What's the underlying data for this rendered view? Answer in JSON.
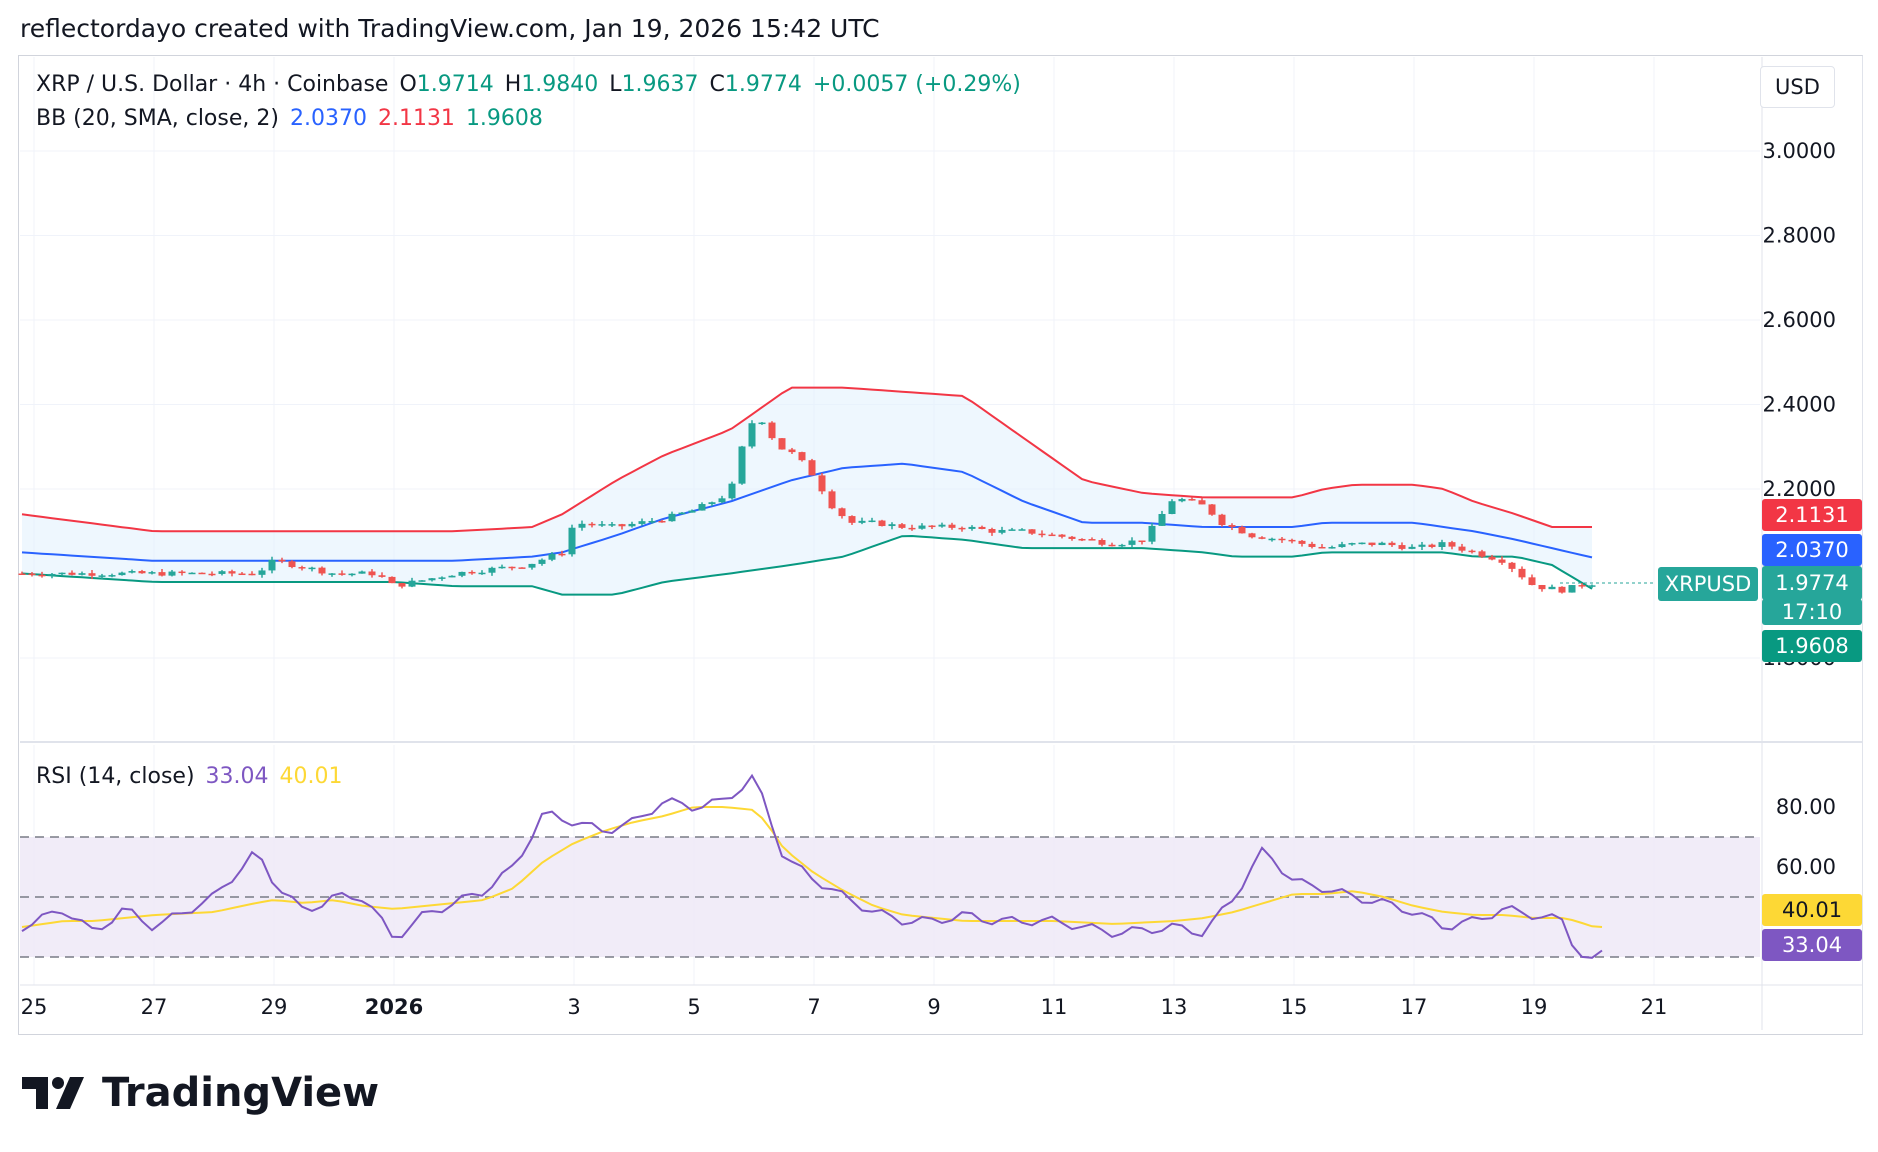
{
  "caption": "reflectordayo created with TradingView.com, Jan 19, 2026 15:42 UTC",
  "brand": "TradingView",
  "price_legend": {
    "symbol": "XRP / U.S. Dollar · 4h · Coinbase",
    "o_label": "O",
    "o": "1.9714",
    "h_label": "H",
    "h": "1.9840",
    "l_label": "L",
    "l": "1.9637",
    "c_label": "C",
    "c": "1.9774",
    "change": "+0.0057 (+0.29%)"
  },
  "bb_legend": {
    "label": "BB (20, SMA, close, 2)",
    "basis": "2.0370",
    "upper": "2.1131",
    "lower": "1.9608"
  },
  "rsi_legend": {
    "label": "RSI (14, close)",
    "rsi": "33.04",
    "ma": "40.01"
  },
  "currency": "USD",
  "badges": {
    "ticker": "XRPUSD",
    "upper": "2.1131",
    "basis": "2.0370",
    "last": "1.9774",
    "countdown": "17:10",
    "lower": "1.9608",
    "rsi_ma": "40.01",
    "rsi": "33.04"
  },
  "colors": {
    "up": "#26a69a",
    "down": "#ef5350",
    "bb_upper": "#f23645",
    "bb_basis": "#2962ff",
    "bb_lower": "#089981",
    "bb_fill": "#e3f2fd",
    "rsi": "#7e57c2",
    "rsi_ma": "#fdd835",
    "rsi_band": "#ede7f6",
    "badge_last": "#26a69a",
    "badge_lower": "#089981"
  },
  "chart_data": {
    "type": "candlestick",
    "interval": "4h",
    "y_ticks": [
      "3.0000",
      "2.8000",
      "2.6000",
      "2.4000",
      "2.2000",
      "1.8000"
    ],
    "y_tick_values": [
      3.0,
      2.8,
      2.6,
      2.4,
      2.2,
      1.8
    ],
    "x_ticks": [
      "25",
      "27",
      "29",
      "2026",
      "3",
      "5",
      "7",
      "9",
      "11",
      "13",
      "15",
      "17",
      "19",
      "21"
    ],
    "x_tick_days": [
      -7,
      -5,
      -3,
      -1,
      2,
      4,
      6,
      8,
      10,
      12,
      14,
      16,
      18,
      20
    ],
    "price_keyframes_day": [
      -7.2,
      -5,
      -3.3,
      -3,
      -2,
      -1.3,
      -1,
      0,
      1.2,
      1.8,
      2.0,
      2.7,
      3.5,
      4,
      4.6,
      4.9,
      5.1,
      5.4,
      5.7,
      6,
      6.3,
      6.6,
      7.0,
      7.5,
      8.0,
      8.5,
      9.0,
      9.5,
      10,
      10.5,
      11,
      11.5,
      12,
      12.5,
      12.8,
      13.3,
      13.8,
      14.5,
      15,
      15.5,
      16,
      16.5,
      17,
      17.5,
      18,
      18.5,
      18.7,
      19.0
    ],
    "price_keyframes": [
      2.0,
      2.0,
      2.0,
      2.03,
      2.0,
      2.0,
      1.97,
      2.0,
      2.02,
      2.05,
      2.12,
      2.11,
      2.13,
      2.15,
      2.19,
      2.35,
      2.37,
      2.3,
      2.28,
      2.23,
      2.16,
      2.12,
      2.12,
      2.11,
      2.11,
      2.11,
      2.1,
      2.1,
      2.09,
      2.08,
      2.07,
      2.08,
      2.18,
      2.16,
      2.12,
      2.09,
      2.08,
      2.06,
      2.07,
      2.07,
      2.06,
      2.07,
      2.05,
      2.03,
      1.97,
      1.96,
      1.97,
      1.9774
    ],
    "bb_upper_keyframes": [
      2.14,
      2.1,
      2.1,
      2.1,
      2.1,
      2.11,
      2.14,
      2.22,
      2.28,
      2.34,
      2.44,
      2.44,
      2.43,
      2.42,
      2.32,
      2.22,
      2.19,
      2.18,
      2.18,
      2.18,
      2.18,
      2.2,
      2.21,
      2.21,
      2.2,
      2.17,
      2.14,
      2.11,
      2.11
    ],
    "bb_keyframe_days": [
      -7.2,
      -5,
      -3,
      -1,
      0,
      1.3,
      1.8,
      2.7,
      3.5,
      4.6,
      5.6,
      6.5,
      7.5,
      8.5,
      9.5,
      10.5,
      11.5,
      12.5,
      13.0,
      13.5,
      14.0,
      14.5,
      15,
      16,
      16.5,
      17.0,
      17.7,
      18.3,
      19.0
    ],
    "bb_basis_keyframes": [
      2.05,
      2.03,
      2.03,
      2.03,
      2.03,
      2.04,
      2.05,
      2.09,
      2.13,
      2.17,
      2.22,
      2.25,
      2.26,
      2.24,
      2.17,
      2.12,
      2.12,
      2.11,
      2.11,
      2.11,
      2.11,
      2.12,
      2.12,
      2.12,
      2.11,
      2.1,
      2.08,
      2.06,
      2.037
    ],
    "bb_lower_keyframes": [
      2.0,
      1.98,
      1.98,
      1.98,
      1.97,
      1.97,
      1.95,
      1.95,
      1.98,
      2.0,
      2.02,
      2.04,
      2.09,
      2.08,
      2.06,
      2.06,
      2.06,
      2.05,
      2.04,
      2.04,
      2.04,
      2.05,
      2.05,
      2.05,
      2.05,
      2.04,
      2.04,
      2.02,
      1.961
    ],
    "rsi_y_ticks": [
      "80.00",
      "60.00"
    ],
    "rsi_tick_values": [
      80,
      60
    ],
    "rsi_bands": [
      70,
      50,
      30
    ],
    "rsi_keyframe_days": [
      -7.2,
      -6.5,
      -6.0,
      -5.5,
      -5.0,
      -4.0,
      -3.3,
      -3.0,
      -2.5,
      -2.0,
      -1.5,
      -1.0,
      -0.5,
      0.5,
      1.0,
      1.5,
      2.0,
      2.5,
      3.0,
      3.5,
      4.0,
      4.5,
      5.0,
      5.2,
      5.5,
      6.0,
      6.5,
      7.0,
      7.5,
      8.0,
      8.5,
      9.0,
      10.0,
      11.0,
      12.0,
      12.5,
      13.0,
      13.5,
      14.0,
      14.5,
      15.0,
      15.5,
      16.0,
      16.5,
      17.0,
      17.5,
      18.0,
      18.5,
      18.7,
      19.0,
      19.2
    ],
    "rsi_keyframes": [
      40,
      46,
      38,
      46,
      40,
      50,
      65,
      55,
      45,
      50,
      50,
      36,
      44,
      52,
      60,
      78,
      75,
      72,
      75,
      82,
      80,
      82,
      90,
      80,
      63,
      56,
      50,
      45,
      42,
      42,
      44,
      42,
      42,
      38,
      40,
      38,
      50,
      66,
      55,
      53,
      50,
      48,
      45,
      40,
      42,
      46,
      44,
      42,
      32,
      28,
      33
    ],
    "rsi_ma_keyframes": [
      40,
      42,
      42,
      43,
      44,
      45,
      48,
      49,
      48,
      49,
      47,
      46,
      47,
      49,
      53,
      62,
      68,
      72,
      75,
      77,
      80,
      80,
      79,
      75,
      66,
      58,
      52,
      47,
      44,
      43,
      42,
      42,
      42,
      41,
      42,
      43,
      45,
      48,
      51,
      51,
      52,
      50,
      47,
      45,
      44,
      44,
      43,
      43,
      42,
      40,
      40
    ]
  }
}
